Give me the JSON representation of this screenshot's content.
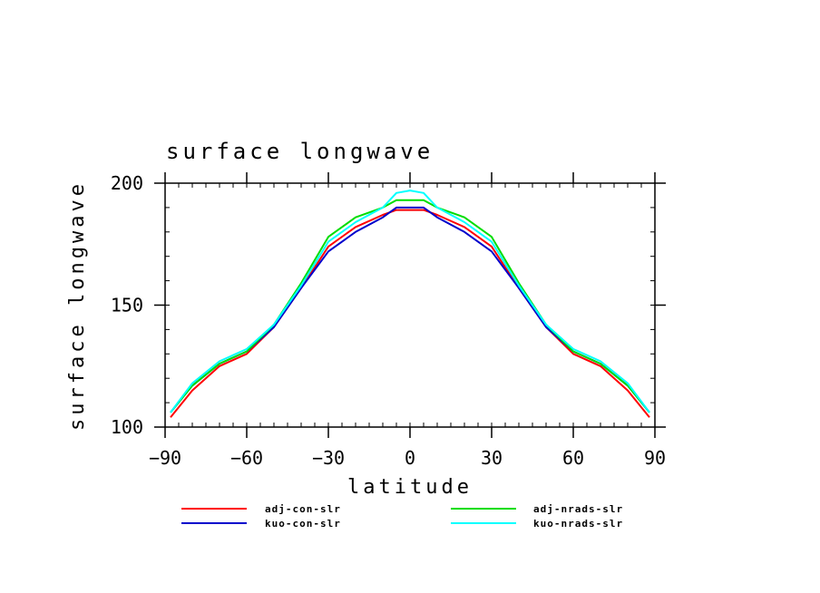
{
  "chart_data": {
    "type": "line",
    "title": "surface longwave",
    "xlabel": "latitude",
    "ylabel": "surface longwave",
    "xlim": [
      -90,
      90
    ],
    "ylim": [
      100,
      200
    ],
    "xticks": [
      -90,
      -60,
      -30,
      0,
      30,
      60,
      90
    ],
    "yticks": [
      100,
      150,
      200
    ],
    "xtick_labels": [
      "−90",
      "−60",
      "−30",
      "0",
      "30",
      "60",
      "90"
    ],
    "ytick_labels": [
      "100",
      "150",
      "200"
    ],
    "legend_position": "below",
    "series": [
      {
        "name": "adj-con-slr",
        "color": "#ff0000",
        "x": [
          -88,
          -80,
          -70,
          -60,
          -50,
          -40,
          -30,
          -20,
          -10,
          -5,
          0,
          5,
          10,
          20,
          30,
          40,
          50,
          60,
          70,
          80,
          88
        ],
        "y": [
          104,
          115,
          125,
          130,
          141,
          157,
          174,
          182,
          187,
          189,
          189,
          189,
          187,
          182,
          174,
          157,
          141,
          130,
          125,
          115,
          104
        ]
      },
      {
        "name": "kuo-con-slr",
        "color": "#0000cc",
        "x": [
          -88,
          -80,
          -70,
          -60,
          -50,
          -40,
          -30,
          -20,
          -10,
          -5,
          0,
          5,
          10,
          20,
          30,
          40,
          50,
          60,
          70,
          80,
          88
        ],
        "y": [
          106,
          117,
          126,
          131,
          141,
          157,
          172,
          180,
          186,
          190,
          190,
          190,
          186,
          180,
          172,
          157,
          141,
          131,
          126,
          117,
          106
        ]
      },
      {
        "name": "adj-nrads-slr",
        "color": "#00dd00",
        "x": [
          -88,
          -80,
          -70,
          -60,
          -50,
          -40,
          -30,
          -20,
          -10,
          -5,
          0,
          5,
          10,
          20,
          30,
          40,
          50,
          60,
          70,
          80,
          88
        ],
        "y": [
          106,
          117,
          126,
          131,
          142,
          159,
          178,
          186,
          190,
          193,
          193,
          193,
          190,
          186,
          178,
          159,
          142,
          131,
          126,
          117,
          106
        ]
      },
      {
        "name": "kuo-nrads-slr",
        "color": "#00ffff",
        "x": [
          -88,
          -80,
          -70,
          -60,
          -50,
          -40,
          -30,
          -20,
          -10,
          -5,
          0,
          5,
          10,
          20,
          30,
          40,
          50,
          60,
          70,
          80,
          88
        ],
        "y": [
          106,
          118,
          127,
          132,
          142,
          158,
          176,
          184,
          190,
          196,
          197,
          196,
          190,
          184,
          176,
          158,
          142,
          132,
          127,
          118,
          106
        ]
      }
    ]
  }
}
